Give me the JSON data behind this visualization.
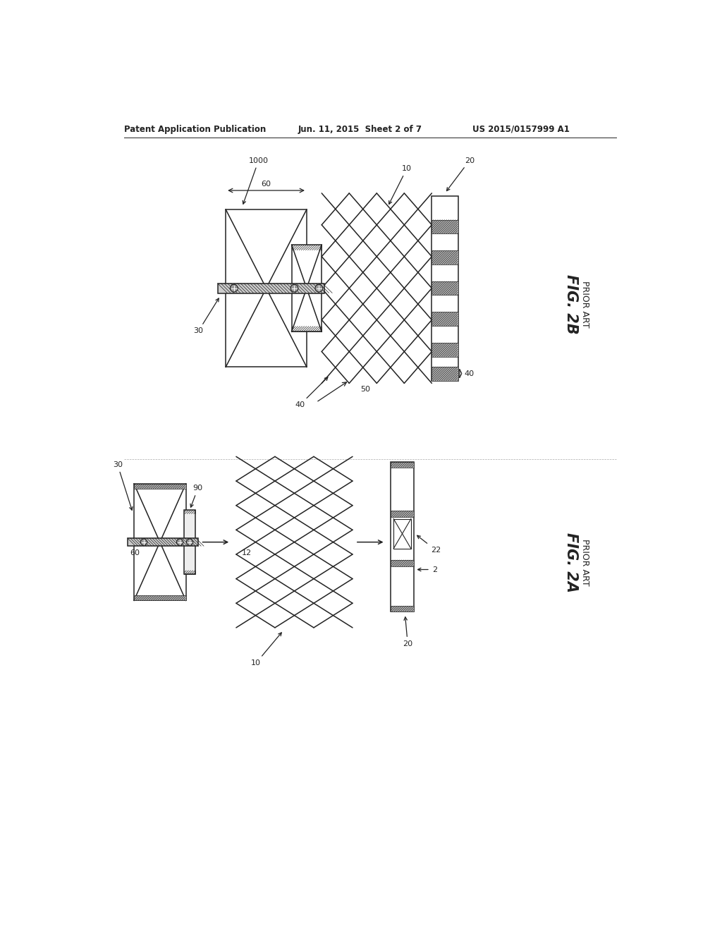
{
  "bg_color": "#ffffff",
  "header_text": "Patent Application Publication",
  "header_date": "Jun. 11, 2015  Sheet 2 of 7",
  "header_patent": "US 2015/0157999 A1",
  "fig2b_label": "FIG. 2B",
  "fig2b_sub": "PRIOR ART",
  "fig2a_label": "FIG. 2A",
  "fig2a_sub": "PRIOR ART",
  "lc": "#222222",
  "hatch_gray": "#bbbbbb",
  "dark_gray": "#888888",
  "mid_gray": "#cccccc"
}
